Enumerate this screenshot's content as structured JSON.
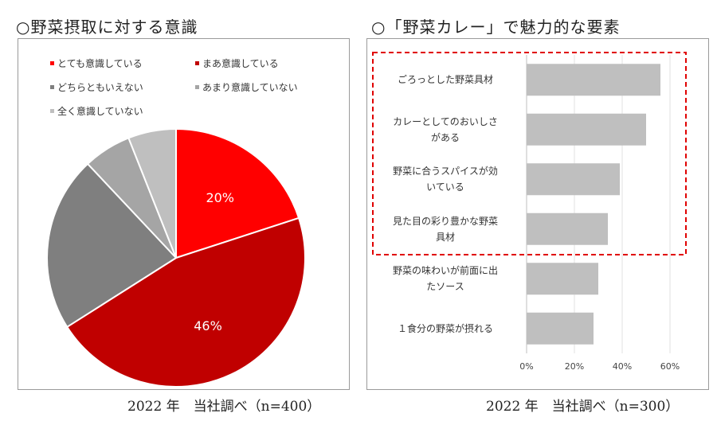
{
  "left": {
    "title": "○野菜摂取に対する意識",
    "source": "2022 年　当社調べ（n=400）"
  },
  "right": {
    "title": "○「野菜カレー」で魅力的な要素",
    "source": "2022 年　当社調べ（n=300）"
  },
  "chart_data": [
    {
      "type": "pie",
      "title": "○野菜摂取に対する意識",
      "legend": [
        "とても意識している",
        "まあ意識している",
        "どちらともいえない",
        "あまり意識していない",
        "全く意識していない"
      ],
      "values": [
        20,
        46,
        22,
        6,
        6
      ],
      "data_labels": [
        "20%",
        "46%",
        "",
        "",
        ""
      ],
      "colors": [
        "#ff0000",
        "#c00000",
        "#7f7f7f",
        "#a5a5a5",
        "#bfbfbf"
      ],
      "legend_position": "top"
    },
    {
      "type": "bar",
      "orientation": "horizontal",
      "title": "○「野菜カレー」で魅力的な要素",
      "categories": [
        [
          "ごろっとした野菜具材"
        ],
        [
          "カレーとしてのおいしさ",
          "がある"
        ],
        [
          "野菜に合うスパイスが効",
          "いている"
        ],
        [
          "見た目の彩り豊かな野菜",
          "具材"
        ],
        [
          "野菜の味わいが前面に出",
          "たソース"
        ],
        [
          "１食分の野菜が摂れる"
        ]
      ],
      "values": [
        56,
        50,
        39,
        34,
        30,
        28
      ],
      "xlim": [
        0,
        60
      ],
      "xticks": [
        "0%",
        "20%",
        "40%",
        "60%"
      ],
      "bar_color": "#bfbfbf",
      "highlight_top_n": 4,
      "highlight_color": "#e00000"
    }
  ]
}
